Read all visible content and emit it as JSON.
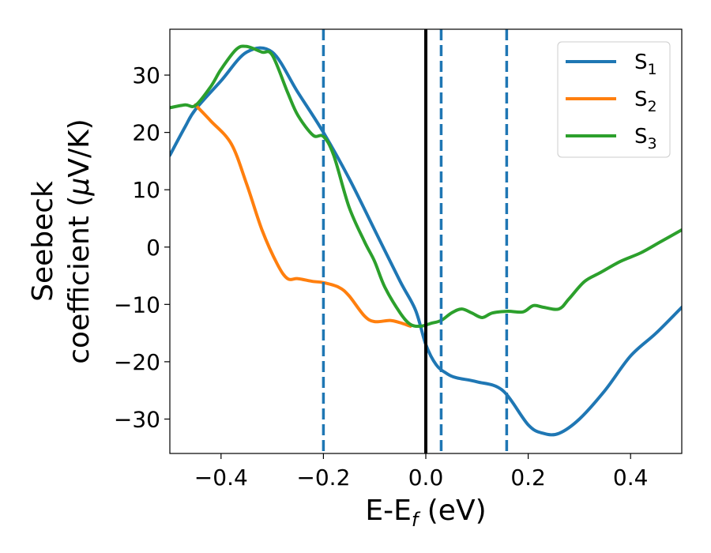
{
  "chart_data": {
    "type": "line",
    "xlabel": "E-E",
    "xlabel_sub": "f",
    "xlabel_unit": " (eV)",
    "ylabel_line1": "Seebeck",
    "ylabel_line2_prefix": "coefficient  (",
    "ylabel_mu": "μ",
    "ylabel_line2_suffix": "V/K)",
    "xlim": [
      -0.5,
      0.5
    ],
    "ylim": [
      -36,
      38
    ],
    "xticks": [
      -0.4,
      -0.2,
      0.0,
      0.2,
      0.4
    ],
    "xtick_labels": [
      "−0.4",
      "−0.2",
      "0.0",
      "0.2",
      "0.4"
    ],
    "yticks": [
      30,
      20,
      10,
      0,
      -10,
      -20,
      -30
    ],
    "ytick_labels": [
      "30",
      "20",
      "10",
      "0",
      "−10",
      "−20",
      "−30"
    ],
    "legend_position": "top-right",
    "vlines": [
      {
        "x": 0.0,
        "style": "solid",
        "color": "#000000"
      },
      {
        "x": -0.2,
        "style": "dashed",
        "color": "#1f77b4"
      },
      {
        "x": 0.03,
        "style": "dashed",
        "color": "#1f77b4"
      },
      {
        "x": 0.158,
        "style": "dashed",
        "color": "#1f77b4"
      }
    ],
    "series": [
      {
        "name": "S",
        "sub": "1",
        "color": "#1f77b4",
        "x": [
          -0.5,
          -0.47,
          -0.45,
          -0.4,
          -0.35,
          -0.3,
          -0.25,
          -0.2,
          -0.15,
          -0.1,
          -0.05,
          -0.02,
          0.0,
          0.02,
          0.04,
          0.06,
          0.1,
          0.15,
          0.2,
          0.23,
          0.26,
          0.3,
          0.35,
          0.4,
          0.45,
          0.5
        ],
        "y": [
          16,
          21,
          24,
          29,
          34,
          34,
          27,
          20,
          12,
          3,
          -6,
          -11,
          -17,
          -20.5,
          -22,
          -22.8,
          -23.5,
          -25,
          -31,
          -32.5,
          -32.5,
          -30,
          -25,
          -19,
          -15,
          -10.5
        ]
      },
      {
        "name": "S",
        "sub": "2",
        "color": "#ff7f0e",
        "x": [
          -0.45,
          -0.42,
          -0.38,
          -0.35,
          -0.32,
          -0.29,
          -0.27,
          -0.25,
          -0.22,
          -0.2,
          -0.17,
          -0.15,
          -0.12,
          -0.1,
          -0.07,
          -0.05,
          -0.03
        ],
        "y": [
          24.8,
          22,
          18,
          11,
          3,
          -3,
          -5.5,
          -5.5,
          -6,
          -6.2,
          -7,
          -8.5,
          -12,
          -13,
          -12.8,
          -13.2,
          -13.8
        ]
      },
      {
        "name": "S",
        "sub": "3",
        "color": "#2ca02c",
        "x": [
          -0.5,
          -0.47,
          -0.45,
          -0.42,
          -0.4,
          -0.37,
          -0.35,
          -0.32,
          -0.3,
          -0.27,
          -0.25,
          -0.22,
          -0.2,
          -0.18,
          -0.15,
          -0.12,
          -0.1,
          -0.08,
          -0.05,
          -0.03,
          -0.01,
          0.01,
          0.03,
          0.05,
          0.07,
          0.09,
          0.11,
          0.13,
          0.16,
          0.19,
          0.21,
          0.23,
          0.26,
          0.28,
          0.31,
          0.34,
          0.38,
          0.42,
          0.46,
          0.5
        ],
        "y": [
          24.3,
          24.8,
          24.7,
          28,
          31,
          34.5,
          35,
          34,
          33.5,
          27,
          23,
          19.5,
          19.3,
          16,
          7,
          1,
          -2.5,
          -7,
          -11.5,
          -13.5,
          -13.8,
          -13.3,
          -12.8,
          -11.5,
          -10.8,
          -11.5,
          -12.3,
          -11.5,
          -11.2,
          -11.3,
          -10.2,
          -10.5,
          -10.8,
          -9,
          -6,
          -4.5,
          -2.5,
          -1,
          1,
          3
        ]
      }
    ]
  }
}
